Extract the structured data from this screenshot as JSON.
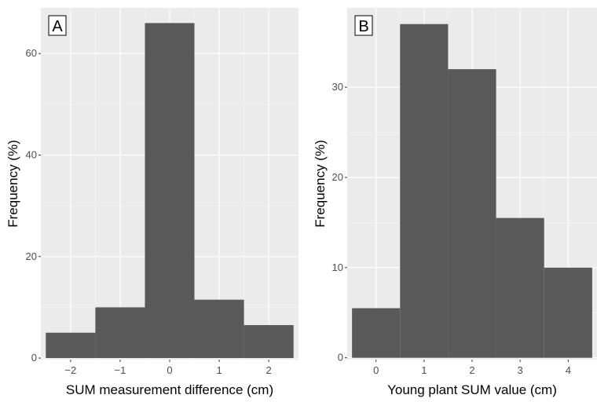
{
  "chart_data": [
    {
      "panel_label": "A",
      "type": "bar",
      "histogram": true,
      "bin_width": 1,
      "categories": [
        -2,
        -1,
        0,
        1,
        2
      ],
      "x_tick_labels": [
        "−2",
        "−1",
        "0",
        "1",
        "2"
      ],
      "values": [
        5,
        10,
        66,
        11.5,
        6.5
      ],
      "y_ticks": [
        0,
        20,
        40,
        60
      ],
      "y_tick_labels": [
        "0",
        "20",
        "40",
        "60"
      ],
      "xlim": [
        -2.6,
        2.6
      ],
      "ylim": [
        -0.3,
        69
      ],
      "title": "",
      "xlabel": "SUM measurement difference (cm)",
      "ylabel": "Frequency (%)",
      "grid": true,
      "bar_color": "#595959",
      "panel_background": "#ebebeb"
    },
    {
      "panel_label": "B",
      "type": "bar",
      "histogram": true,
      "bin_width": 1,
      "categories": [
        0,
        1,
        2,
        3,
        4
      ],
      "x_tick_labels": [
        "0",
        "1",
        "2",
        "3",
        "4"
      ],
      "values": [
        5.5,
        37,
        32,
        15.5,
        10
      ],
      "y_ticks": [
        0,
        10,
        20,
        30
      ],
      "y_tick_labels": [
        "0",
        "10",
        "20",
        "30"
      ],
      "xlim": [
        -0.6,
        4.6
      ],
      "ylim": [
        -0.2,
        38.8
      ],
      "title": "",
      "xlabel": "Young plant SUM value (cm)",
      "ylabel": "Frequency (%)",
      "grid": true,
      "bar_color": "#595959",
      "panel_background": "#ebebeb"
    }
  ]
}
